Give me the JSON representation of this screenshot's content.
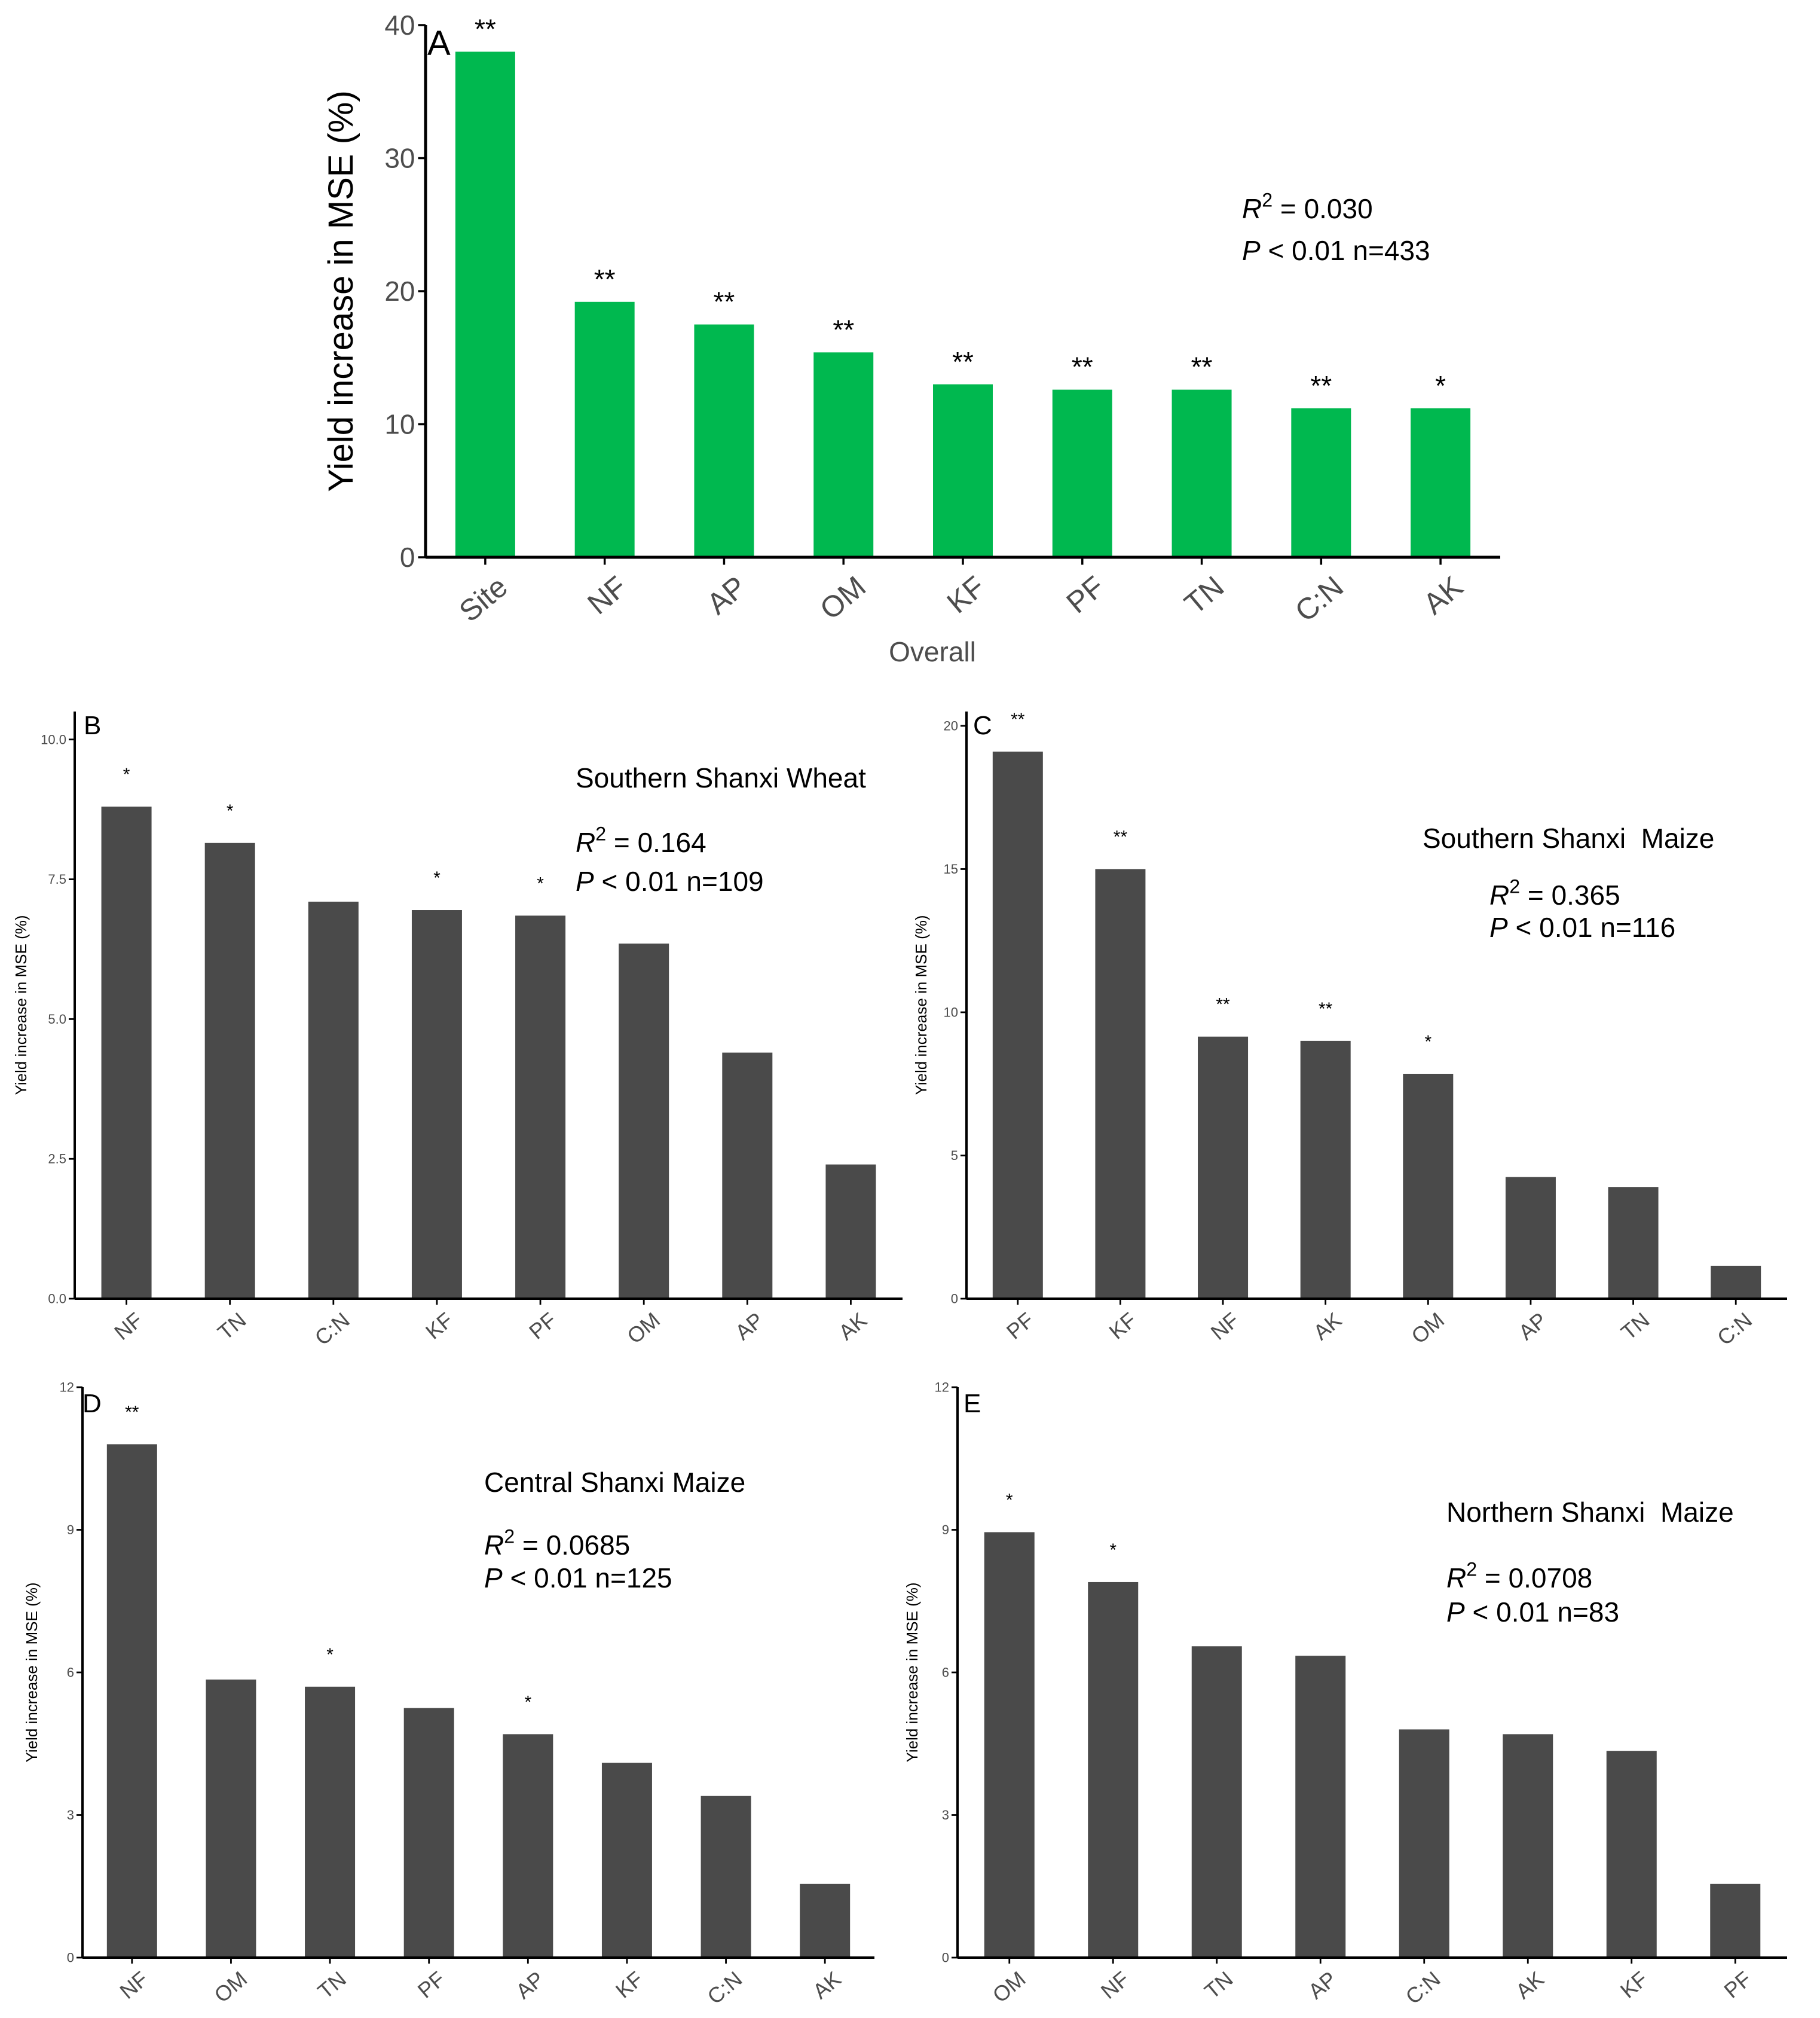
{
  "colors": {
    "green": "#00b84f",
    "dark": "#4a4a4a",
    "axis": "#000000",
    "tick_text": "#4d4d4d"
  },
  "chart_data": [
    {
      "id": "A",
      "type": "bar",
      "panel_label": "A",
      "title": "",
      "xlabel": "Overall",
      "ylabel": "Yield increase in MSE (%)",
      "ylim": [
        0,
        40
      ],
      "yticks": [
        0,
        10,
        20,
        30,
        40
      ],
      "categories": [
        "Site",
        "NF",
        "AP",
        "OM",
        "KF",
        "PF",
        "TN",
        "C:N",
        "AK"
      ],
      "values": [
        38.0,
        19.2,
        17.5,
        15.4,
        13.0,
        12.6,
        12.6,
        11.2,
        11.2
      ],
      "significance": [
        "**",
        "**",
        "**",
        "**",
        "**",
        "**",
        "**",
        "**",
        "*"
      ],
      "stats": {
        "r2": "R2 = 0.030",
        "p": "P < 0.01 n=433"
      },
      "bar_color": "#00b84f",
      "grid": false
    },
    {
      "id": "B",
      "type": "bar",
      "panel_label": "B",
      "title": "Southern Shanxi Wheat",
      "xlabel": "",
      "ylabel": "Yield increase in MSE (%)",
      "ylim": [
        0,
        10.5
      ],
      "yticks": [
        0.0,
        2.5,
        5.0,
        7.5,
        10.0
      ],
      "categories": [
        "NF",
        "TN",
        "C:N",
        "KF",
        "PF",
        "OM",
        "AP",
        "AK"
      ],
      "values": [
        8.8,
        8.15,
        7.1,
        6.95,
        6.85,
        6.35,
        4.4,
        2.4
      ],
      "significance": [
        "*",
        "*",
        "",
        "*",
        "*",
        "",
        "",
        ""
      ],
      "stats": {
        "r2": "R2 = 0.164",
        "p": "P < 0.01 n=109"
      },
      "bar_color": "#4a4a4a",
      "grid": false
    },
    {
      "id": "C",
      "type": "bar",
      "panel_label": "C",
      "title": "Southern Shanxi  Maize",
      "xlabel": "",
      "ylabel": "Yield increase in MSE (%)",
      "ylim": [
        0,
        20.5
      ],
      "yticks": [
        0,
        5,
        10,
        15,
        20
      ],
      "categories": [
        "PF",
        "KF",
        "NF",
        "AK",
        "OM",
        "AP",
        "TN",
        "C:N"
      ],
      "values": [
        19.1,
        15.0,
        9.15,
        9.0,
        7.85,
        4.25,
        3.9,
        1.15
      ],
      "significance": [
        "**",
        "**",
        "**",
        "**",
        "*",
        "",
        "",
        ""
      ],
      "stats": {
        "r2": "R2 = 0.365",
        "p": "P < 0.01 n=116"
      },
      "bar_color": "#4a4a4a",
      "grid": false
    },
    {
      "id": "D",
      "type": "bar",
      "panel_label": "D",
      "title": "Central Shanxi Maize",
      "xlabel": "",
      "ylabel": "Yield increase in MSE (%)",
      "ylim": [
        0,
        12
      ],
      "yticks": [
        0,
        3,
        6,
        9,
        12
      ],
      "categories": [
        "NF",
        "OM",
        "TN",
        "PF",
        "AP",
        "KF",
        "C:N",
        "AK"
      ],
      "values": [
        10.8,
        5.85,
        5.7,
        5.25,
        4.7,
        4.1,
        3.4,
        1.55
      ],
      "significance": [
        "**",
        "",
        "*",
        "",
        "*",
        "",
        "",
        ""
      ],
      "stats": {
        "r2": "R2 = 0.0685",
        "p": "P < 0.01 n=125"
      },
      "bar_color": "#4a4a4a",
      "grid": false
    },
    {
      "id": "E",
      "type": "bar",
      "panel_label": "E",
      "title": "Northern Shanxi  Maize",
      "xlabel": "",
      "ylabel": "Yield increase in MSE (%)",
      "ylim": [
        0,
        12
      ],
      "yticks": [
        0,
        3,
        6,
        9,
        12
      ],
      "categories": [
        "OM",
        "NF",
        "TN",
        "AP",
        "C:N",
        "AK",
        "KF",
        "PF"
      ],
      "values": [
        8.95,
        7.9,
        6.55,
        6.35,
        4.8,
        4.7,
        4.35,
        1.55
      ],
      "significance": [
        "*",
        "*",
        "",
        "",
        "",
        "",
        "",
        ""
      ],
      "stats": {
        "r2": "R2 = 0.0708",
        "p": "P < 0.01 n=83"
      },
      "bar_color": "#4a4a4a",
      "grid": false
    }
  ]
}
